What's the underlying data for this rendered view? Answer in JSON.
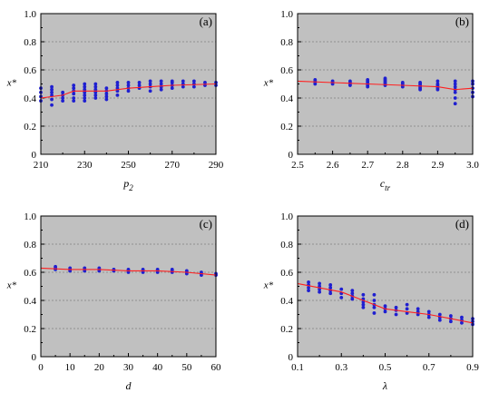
{
  "chart_data": [
    {
      "type": "scatter",
      "panel_label": "(a)",
      "xlabel": "p",
      "xlabel_sub": "2",
      "ylabel": "x*",
      "xlim": [
        210,
        290
      ],
      "ylim": [
        0,
        1.0
      ],
      "xticks": [
        210,
        230,
        250,
        270,
        290
      ],
      "xtick_labels": [
        "210",
        "230",
        "250",
        "270",
        "290"
      ],
      "yticks": [
        0,
        0.2,
        0.4,
        0.6,
        0.8,
        1.0
      ],
      "ytick_labels": [
        "0",
        "0.2",
        "0.4",
        "0.6",
        "0.8",
        "1.0"
      ],
      "grid": true,
      "points": [
        [
          210,
          0.38
        ],
        [
          210,
          0.41
        ],
        [
          210,
          0.44
        ],
        [
          210,
          0.47
        ],
        [
          215,
          0.35
        ],
        [
          215,
          0.39
        ],
        [
          215,
          0.42
        ],
        [
          215,
          0.44
        ],
        [
          215,
          0.46
        ],
        [
          215,
          0.48
        ],
        [
          220,
          0.38
        ],
        [
          220,
          0.4
        ],
        [
          220,
          0.42
        ],
        [
          220,
          0.44
        ],
        [
          225,
          0.38
        ],
        [
          225,
          0.4
        ],
        [
          225,
          0.43
        ],
        [
          225,
          0.45
        ],
        [
          225,
          0.47
        ],
        [
          225,
          0.49
        ],
        [
          230,
          0.38
        ],
        [
          230,
          0.4
        ],
        [
          230,
          0.42
        ],
        [
          230,
          0.44
        ],
        [
          230,
          0.46
        ],
        [
          230,
          0.48
        ],
        [
          230,
          0.5
        ],
        [
          235,
          0.4
        ],
        [
          235,
          0.42
        ],
        [
          235,
          0.44
        ],
        [
          235,
          0.46
        ],
        [
          235,
          0.48
        ],
        [
          235,
          0.5
        ],
        [
          240,
          0.39
        ],
        [
          240,
          0.41
        ],
        [
          240,
          0.43
        ],
        [
          240,
          0.45
        ],
        [
          240,
          0.47
        ],
        [
          245,
          0.42
        ],
        [
          245,
          0.45
        ],
        [
          245,
          0.47
        ],
        [
          245,
          0.49
        ],
        [
          245,
          0.51
        ],
        [
          250,
          0.45
        ],
        [
          250,
          0.47
        ],
        [
          250,
          0.49
        ],
        [
          250,
          0.51
        ],
        [
          255,
          0.47
        ],
        [
          255,
          0.49
        ],
        [
          255,
          0.51
        ],
        [
          260,
          0.45
        ],
        [
          260,
          0.48
        ],
        [
          260,
          0.5
        ],
        [
          260,
          0.52
        ],
        [
          265,
          0.46
        ],
        [
          265,
          0.48
        ],
        [
          265,
          0.5
        ],
        [
          265,
          0.52
        ],
        [
          270,
          0.47
        ],
        [
          270,
          0.49
        ],
        [
          270,
          0.51
        ],
        [
          270,
          0.52
        ],
        [
          275,
          0.48
        ],
        [
          275,
          0.5
        ],
        [
          275,
          0.52
        ],
        [
          280,
          0.48
        ],
        [
          280,
          0.5
        ],
        [
          280,
          0.52
        ],
        [
          285,
          0.49
        ],
        [
          285,
          0.51
        ],
        [
          290,
          0.49
        ],
        [
          290,
          0.51
        ]
      ],
      "fit_line": [
        [
          210,
          0.4
        ],
        [
          220,
          0.42
        ],
        [
          225,
          0.45
        ],
        [
          240,
          0.45
        ],
        [
          250,
          0.47
        ],
        [
          260,
          0.48
        ],
        [
          270,
          0.49
        ],
        [
          290,
          0.5
        ]
      ]
    },
    {
      "type": "scatter",
      "panel_label": "(b)",
      "xlabel": "c",
      "xlabel_sub": "tr",
      "ylabel": "x*",
      "xlim": [
        2.5,
        3.0
      ],
      "ylim": [
        0,
        1.0
      ],
      "xticks": [
        2.5,
        2.6,
        2.7,
        2.8,
        2.9,
        3.0
      ],
      "xtick_labels": [
        "2.5",
        "2.6",
        "2.7",
        "2.8",
        "2.9",
        "3.0"
      ],
      "yticks": [
        0,
        0.2,
        0.4,
        0.6,
        0.8,
        1.0
      ],
      "ytick_labels": [
        "0",
        "0.2",
        "0.4",
        "0.6",
        "0.8",
        "1.0"
      ],
      "grid": true,
      "points": [
        [
          2.55,
          0.5
        ],
        [
          2.55,
          0.51
        ],
        [
          2.55,
          0.52
        ],
        [
          2.55,
          0.53
        ],
        [
          2.6,
          0.5
        ],
        [
          2.6,
          0.51
        ],
        [
          2.6,
          0.52
        ],
        [
          2.65,
          0.49
        ],
        [
          2.65,
          0.5
        ],
        [
          2.65,
          0.51
        ],
        [
          2.65,
          0.52
        ],
        [
          2.7,
          0.48
        ],
        [
          2.7,
          0.49
        ],
        [
          2.7,
          0.5
        ],
        [
          2.7,
          0.51
        ],
        [
          2.7,
          0.52
        ],
        [
          2.7,
          0.53
        ],
        [
          2.75,
          0.49
        ],
        [
          2.75,
          0.5
        ],
        [
          2.75,
          0.51
        ],
        [
          2.75,
          0.52
        ],
        [
          2.75,
          0.53
        ],
        [
          2.75,
          0.54
        ],
        [
          2.8,
          0.48
        ],
        [
          2.8,
          0.49
        ],
        [
          2.8,
          0.5
        ],
        [
          2.8,
          0.51
        ],
        [
          2.85,
          0.46
        ],
        [
          2.85,
          0.47
        ],
        [
          2.85,
          0.48
        ],
        [
          2.85,
          0.49
        ],
        [
          2.85,
          0.5
        ],
        [
          2.85,
          0.51
        ],
        [
          2.9,
          0.46
        ],
        [
          2.9,
          0.47
        ],
        [
          2.9,
          0.48
        ],
        [
          2.9,
          0.49
        ],
        [
          2.9,
          0.5
        ],
        [
          2.9,
          0.52
        ],
        [
          2.95,
          0.36
        ],
        [
          2.95,
          0.4
        ],
        [
          2.95,
          0.44
        ],
        [
          2.95,
          0.46
        ],
        [
          2.95,
          0.48
        ],
        [
          2.95,
          0.5
        ],
        [
          2.95,
          0.52
        ],
        [
          3.0,
          0.41
        ],
        [
          3.0,
          0.44
        ],
        [
          3.0,
          0.47
        ],
        [
          3.0,
          0.5
        ],
        [
          3.0,
          0.52
        ]
      ],
      "fit_line": [
        [
          2.5,
          0.52
        ],
        [
          2.6,
          0.51
        ],
        [
          2.7,
          0.5
        ],
        [
          2.8,
          0.49
        ],
        [
          2.9,
          0.48
        ],
        [
          2.95,
          0.46
        ],
        [
          3.0,
          0.47
        ]
      ]
    },
    {
      "type": "scatter",
      "panel_label": "(c)",
      "xlabel": "d",
      "xlabel_sub": "",
      "ylabel": "x*",
      "xlim": [
        0,
        60
      ],
      "ylim": [
        0,
        1.0
      ],
      "xticks": [
        0,
        10,
        20,
        30,
        40,
        50,
        60
      ],
      "xtick_labels": [
        "0",
        "10",
        "20",
        "30",
        "40",
        "50",
        "60"
      ],
      "yticks": [
        0,
        0.2,
        0.4,
        0.6,
        0.8,
        1.0
      ],
      "ytick_labels": [
        "0",
        "0.2",
        "0.4",
        "0.6",
        "0.8",
        "1.0"
      ],
      "grid": true,
      "points": [
        [
          5,
          0.62
        ],
        [
          5,
          0.63
        ],
        [
          5,
          0.64
        ],
        [
          10,
          0.61
        ],
        [
          10,
          0.62
        ],
        [
          10,
          0.63
        ],
        [
          15,
          0.61
        ],
        [
          15,
          0.62
        ],
        [
          15,
          0.63
        ],
        [
          20,
          0.61
        ],
        [
          20,
          0.62
        ],
        [
          20,
          0.63
        ],
        [
          25,
          0.61
        ],
        [
          25,
          0.62
        ],
        [
          30,
          0.6
        ],
        [
          30,
          0.61
        ],
        [
          30,
          0.62
        ],
        [
          35,
          0.6
        ],
        [
          35,
          0.61
        ],
        [
          35,
          0.62
        ],
        [
          40,
          0.6
        ],
        [
          40,
          0.61
        ],
        [
          40,
          0.62
        ],
        [
          45,
          0.6
        ],
        [
          45,
          0.61
        ],
        [
          45,
          0.62
        ],
        [
          50,
          0.59
        ],
        [
          50,
          0.6
        ],
        [
          50,
          0.61
        ],
        [
          55,
          0.58
        ],
        [
          55,
          0.59
        ],
        [
          55,
          0.6
        ],
        [
          60,
          0.58
        ],
        [
          60,
          0.59
        ]
      ],
      "fit_line": [
        [
          0,
          0.63
        ],
        [
          10,
          0.62
        ],
        [
          20,
          0.62
        ],
        [
          30,
          0.61
        ],
        [
          40,
          0.61
        ],
        [
          50,
          0.6
        ],
        [
          60,
          0.58
        ]
      ]
    },
    {
      "type": "scatter",
      "panel_label": "(d)",
      "xlabel": "λ",
      "xlabel_sub": "",
      "ylabel": "x*",
      "xlim": [
        0.1,
        0.9
      ],
      "ylim": [
        0,
        1.0
      ],
      "xticks": [
        0.1,
        0.3,
        0.5,
        0.7,
        0.9
      ],
      "xtick_labels": [
        "0.1",
        "0.3",
        "0.5",
        "0.7",
        "0.9"
      ],
      "yticks": [
        0,
        0.2,
        0.4,
        0.6,
        0.8,
        1.0
      ],
      "ytick_labels": [
        "0",
        "0.2",
        "0.4",
        "0.6",
        "0.8",
        "1.0"
      ],
      "grid": true,
      "points": [
        [
          0.15,
          0.47
        ],
        [
          0.15,
          0.49
        ],
        [
          0.15,
          0.51
        ],
        [
          0.15,
          0.53
        ],
        [
          0.2,
          0.46
        ],
        [
          0.2,
          0.48
        ],
        [
          0.2,
          0.5
        ],
        [
          0.2,
          0.52
        ],
        [
          0.25,
          0.45
        ],
        [
          0.25,
          0.47
        ],
        [
          0.25,
          0.49
        ],
        [
          0.25,
          0.51
        ],
        [
          0.3,
          0.42
        ],
        [
          0.3,
          0.45
        ],
        [
          0.3,
          0.48
        ],
        [
          0.35,
          0.41
        ],
        [
          0.35,
          0.43
        ],
        [
          0.35,
          0.45
        ],
        [
          0.35,
          0.47
        ],
        [
          0.4,
          0.35
        ],
        [
          0.4,
          0.37
        ],
        [
          0.4,
          0.39
        ],
        [
          0.4,
          0.41
        ],
        [
          0.4,
          0.44
        ],
        [
          0.45,
          0.31
        ],
        [
          0.45,
          0.35
        ],
        [
          0.45,
          0.37
        ],
        [
          0.45,
          0.4
        ],
        [
          0.45,
          0.44
        ],
        [
          0.5,
          0.32
        ],
        [
          0.5,
          0.34
        ],
        [
          0.5,
          0.36
        ],
        [
          0.55,
          0.3
        ],
        [
          0.55,
          0.33
        ],
        [
          0.55,
          0.35
        ],
        [
          0.6,
          0.31
        ],
        [
          0.6,
          0.34
        ],
        [
          0.6,
          0.37
        ],
        [
          0.65,
          0.3
        ],
        [
          0.65,
          0.32
        ],
        [
          0.65,
          0.34
        ],
        [
          0.7,
          0.28
        ],
        [
          0.7,
          0.3
        ],
        [
          0.7,
          0.32
        ],
        [
          0.75,
          0.26
        ],
        [
          0.75,
          0.28
        ],
        [
          0.75,
          0.3
        ],
        [
          0.8,
          0.25
        ],
        [
          0.8,
          0.27
        ],
        [
          0.8,
          0.29
        ],
        [
          0.85,
          0.24
        ],
        [
          0.85,
          0.26
        ],
        [
          0.85,
          0.28
        ],
        [
          0.9,
          0.23
        ],
        [
          0.9,
          0.25
        ],
        [
          0.9,
          0.27
        ]
      ],
      "fit_line": [
        [
          0.1,
          0.52
        ],
        [
          0.2,
          0.49
        ],
        [
          0.3,
          0.46
        ],
        [
          0.4,
          0.4
        ],
        [
          0.5,
          0.34
        ],
        [
          0.6,
          0.32
        ],
        [
          0.7,
          0.3
        ],
        [
          0.8,
          0.27
        ],
        [
          0.9,
          0.24
        ]
      ]
    }
  ],
  "colors": {
    "plot_background": "#c0c0c0",
    "grid": "#808080",
    "points": "#1f1fd0",
    "fit_line": "#ff2020",
    "axes": "#000000"
  }
}
